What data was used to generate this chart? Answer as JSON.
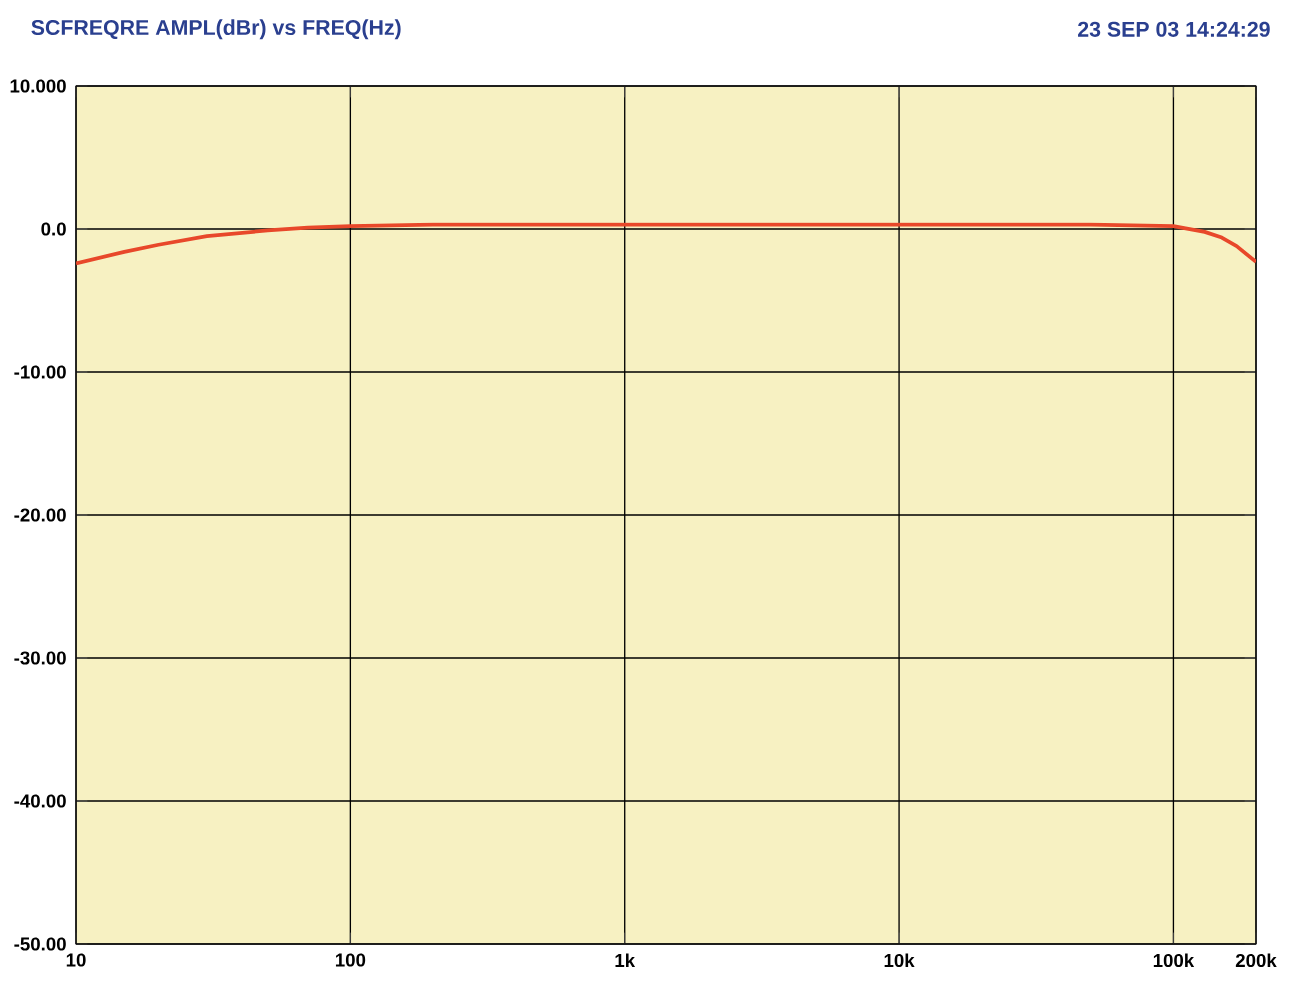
{
  "chart_data": {
    "type": "line",
    "title": "SCFREQRE AMPL(dBr)   vs   FREQ(Hz)",
    "annotations": [
      "23 SEP 03 14:24:29"
    ],
    "log": "x",
    "grid": true,
    "marker": "none",
    "line_style": "solid",
    "xlim": [
      10,
      200000
    ],
    "ylim": [
      -50,
      10
    ],
    "xticks": [
      {
        "value": 10,
        "label": "10"
      },
      {
        "value": 100,
        "label": "100"
      },
      {
        "value": 1000,
        "label": "1k"
      },
      {
        "value": 10000,
        "label": "10k"
      },
      {
        "value": 100000,
        "label": "100k"
      },
      {
        "value": 200000,
        "label": "200k"
      }
    ],
    "yticks": [
      {
        "value": 10,
        "label": "10.000"
      },
      {
        "value": 0,
        "label": "0.0"
      },
      {
        "value": -10,
        "label": "-10.00"
      },
      {
        "value": -20,
        "label": "-20.00"
      },
      {
        "value": -30,
        "label": "-30.00"
      },
      {
        "value": -40,
        "label": "-40.00"
      },
      {
        "value": -50,
        "label": "-50.00"
      }
    ],
    "series": [
      {
        "color": "#e8482a",
        "x": [
          10,
          15,
          20,
          30,
          50,
          70,
          100,
          200,
          1000,
          10000,
          50000,
          100000,
          130000,
          150000,
          170000,
          200000
        ],
        "values": [
          -2.4,
          -1.6,
          -1.1,
          -0.5,
          -0.1,
          0.1,
          0.2,
          0.3,
          0.3,
          0.3,
          0.3,
          0.2,
          -0.2,
          -0.6,
          -1.2,
          -2.3
        ]
      }
    ]
  }
}
